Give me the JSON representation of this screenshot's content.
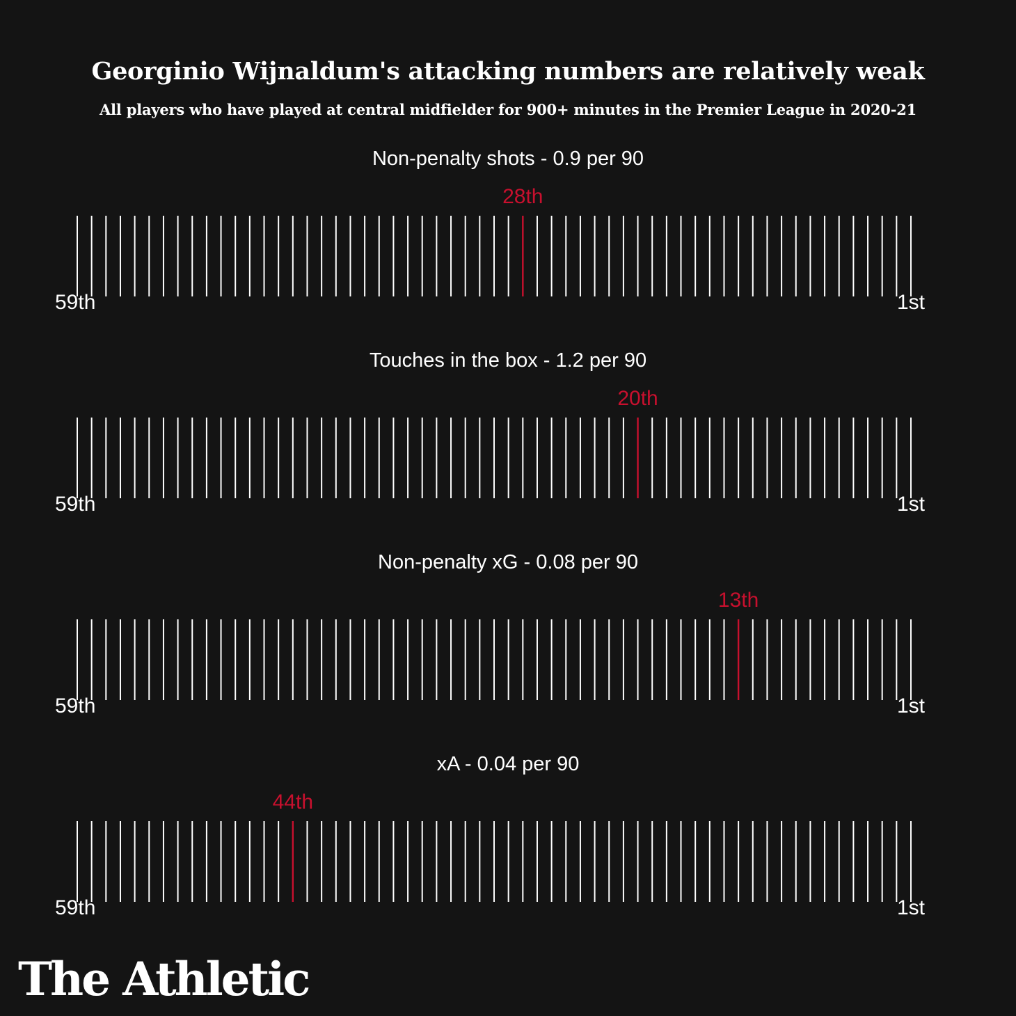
{
  "title": "Georginio Wijnaldum's attacking numbers are relatively weak",
  "subtitle": "All players who have played at central midfielder for 900+ minutes in the Premier League in 2020-21",
  "colors": {
    "background": "#141414",
    "tick": "#ffffff",
    "highlight": "#c8102e"
  },
  "chart_data": [
    {
      "type": "bar",
      "title": "Non-penalty shots - 0.9 per 90",
      "total_players": 59,
      "rank": 28,
      "rank_label": "28th",
      "axis_left_label": "59th",
      "axis_right_label": "1st",
      "value_per_90": 0.9
    },
    {
      "type": "bar",
      "title": "Touches in the box - 1.2 per 90",
      "total_players": 59,
      "rank": 20,
      "rank_label": "20th",
      "axis_left_label": "59th",
      "axis_right_label": "1st",
      "value_per_90": 1.2
    },
    {
      "type": "bar",
      "title": "Non-penalty xG - 0.08 per 90",
      "total_players": 59,
      "rank": 13,
      "rank_label": "13th",
      "axis_left_label": "59th",
      "axis_right_label": "1st",
      "value_per_90": 0.08
    },
    {
      "type": "bar",
      "title": "xA - 0.04 per 90",
      "total_players": 59,
      "rank": 44,
      "rank_label": "44th",
      "axis_left_label": "59th",
      "axis_right_label": "1st",
      "value_per_90": 0.04
    }
  ],
  "logo": "The Athletic"
}
